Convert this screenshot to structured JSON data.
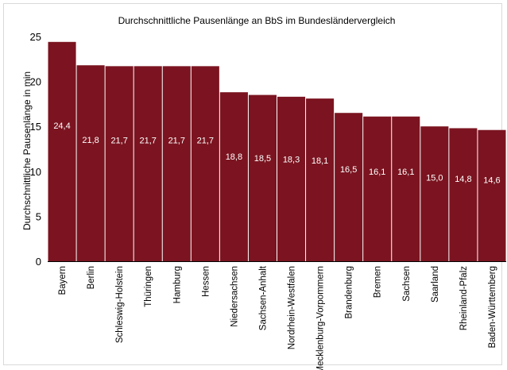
{
  "chart_data": {
    "type": "bar",
    "title": "Durchschnittliche Pausenlänge an BbS im Bundesländervergleich",
    "xlabel": "",
    "ylabel": "Durchschnittliche Pausenlänge in min",
    "ylim": [
      0,
      25
    ],
    "yticks": [
      "0",
      "5",
      "10",
      "15",
      "20",
      "25"
    ],
    "grid": false,
    "bar_color": "#7b1420",
    "categories": [
      "Bayern",
      "Berlin",
      "Schleswig-Holstein",
      "Thüringen",
      "Hamburg",
      "Hessen",
      "Niedersachsen",
      "Sachsen-Anhalt",
      "Nordrhein-Westfalen",
      "Mecklenburg-Vorpommern",
      "Brandenburg",
      "Bremen",
      "Sachsen",
      "Saarland",
      "Rheinland-Pfalz",
      "Baden-Württemberg"
    ],
    "values": [
      24.4,
      21.8,
      21.7,
      21.7,
      21.7,
      21.7,
      18.8,
      18.5,
      18.3,
      18.1,
      16.5,
      16.1,
      16.1,
      15.0,
      14.8,
      14.6
    ],
    "value_labels": [
      "24,4",
      "21,8",
      "21,7",
      "21,7",
      "21,7",
      "21,7",
      "18,8",
      "18,5",
      "18,3",
      "18,1",
      "16,5",
      "16,1",
      "16,1",
      "15,0",
      "14,8",
      "14,6"
    ]
  }
}
